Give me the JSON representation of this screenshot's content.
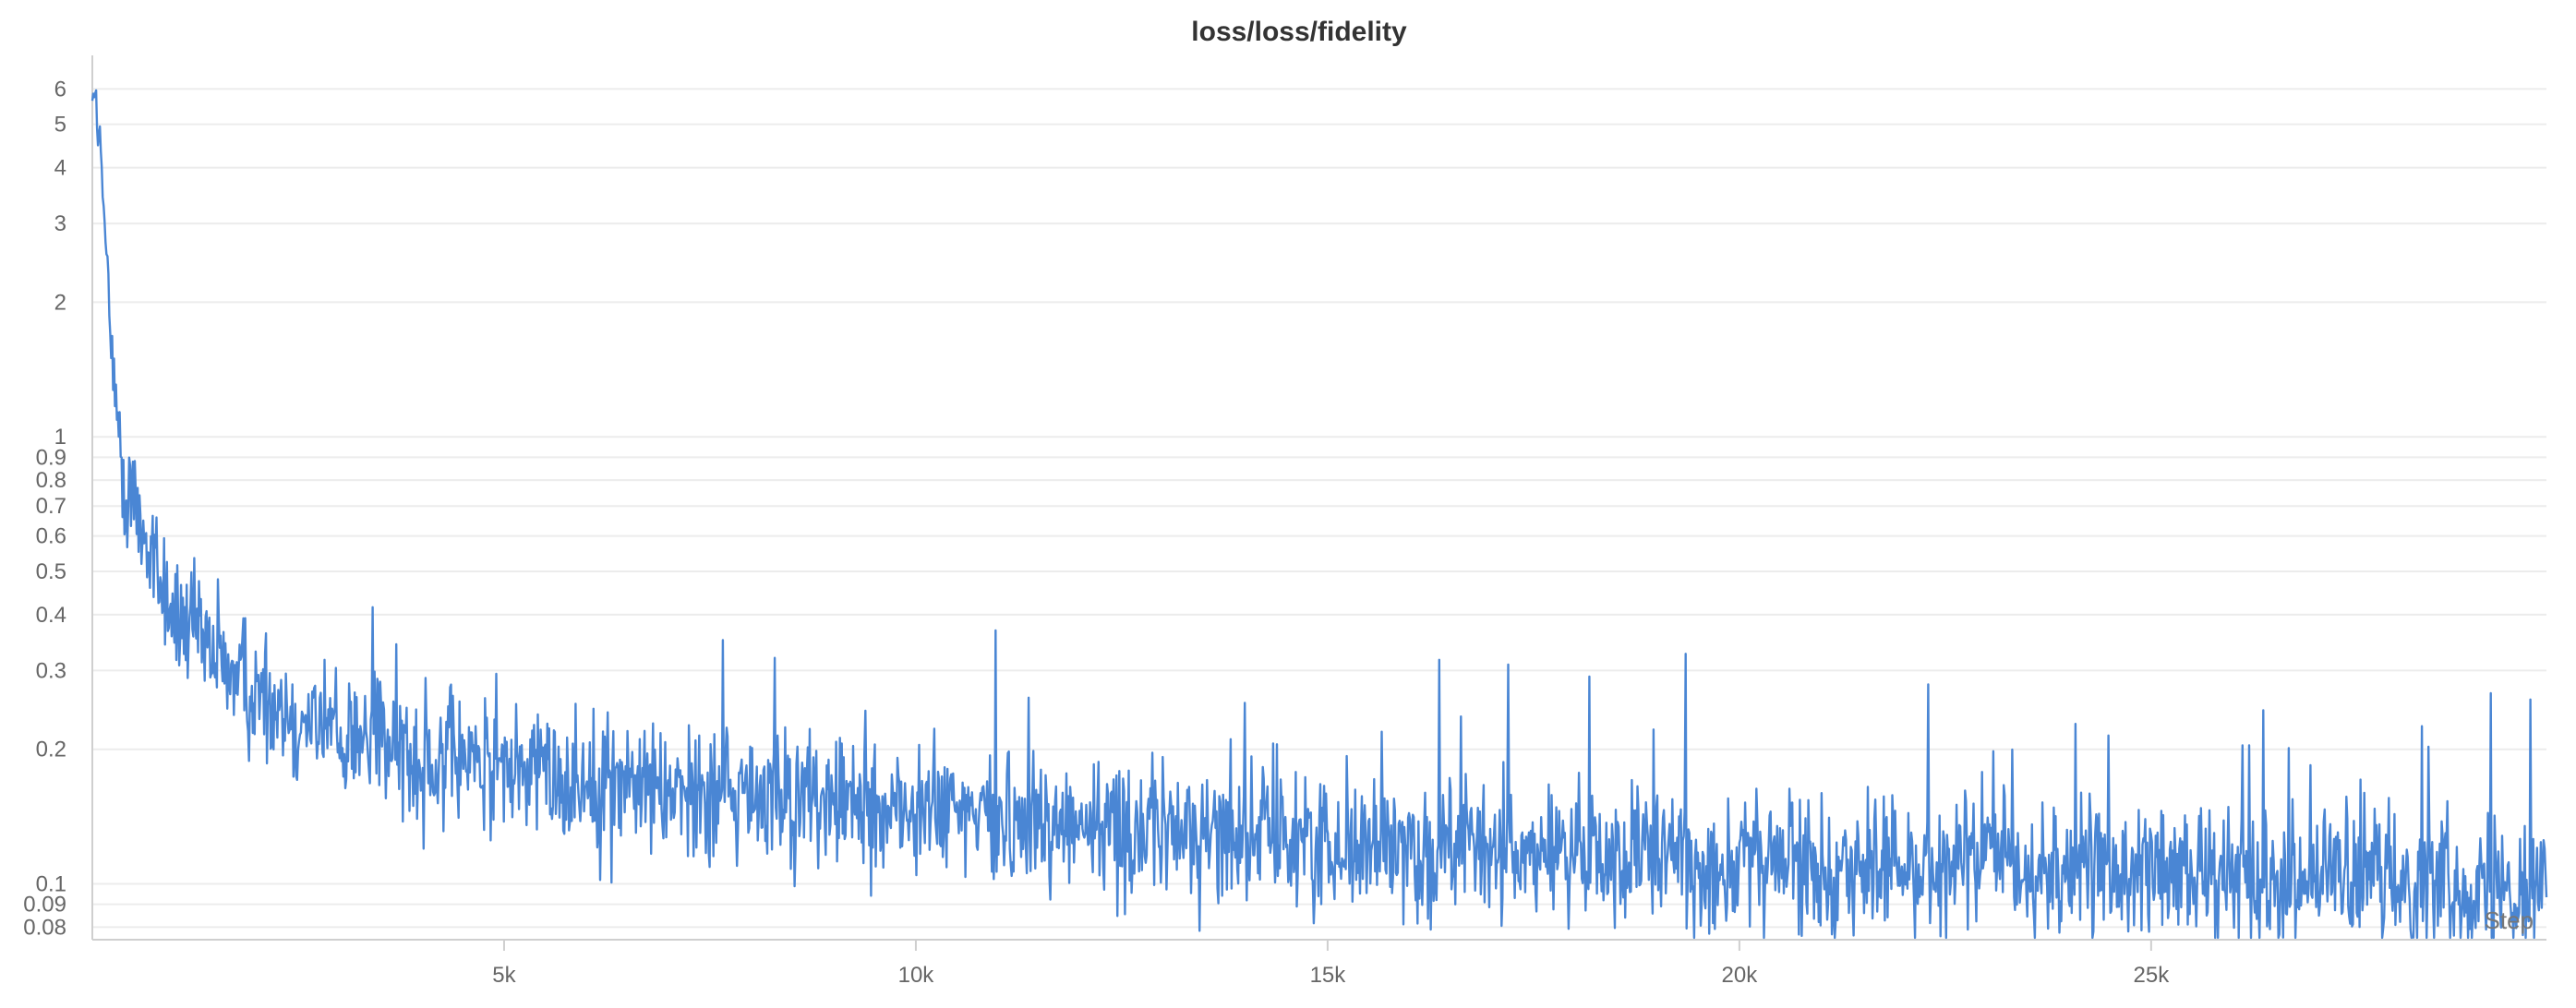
{
  "chart_data": {
    "type": "line",
    "title": "loss/loss/fidelity",
    "xlabel": "Step",
    "ylabel": "",
    "y_scale": "log",
    "xlim": [
      0,
      29800
    ],
    "ylim": [
      0.075,
      6.8
    ],
    "grid": true,
    "legend": "none",
    "x_ticks": [
      5000,
      10000,
      15000,
      20000,
      25000
    ],
    "x_tick_labels": [
      "5k",
      "10k",
      "15k",
      "20k",
      "25k"
    ],
    "y_ticks": [
      0.08,
      0.09,
      0.1,
      0.2,
      0.3,
      0.4,
      0.5,
      0.6,
      0.7,
      0.8,
      0.9,
      1,
      2,
      3,
      4,
      5,
      6
    ],
    "y_tick_labels": [
      "0.08",
      "0.09",
      "0.1",
      "0.2",
      "0.3",
      "0.4",
      "0.5",
      "0.6",
      "0.7",
      "0.8",
      "0.9",
      "1",
      "2",
      "3",
      "4",
      "5",
      "6"
    ],
    "series_color": "#4a86d4",
    "series": [
      {
        "x": [
          0,
          50,
          100,
          150,
          200,
          250,
          300,
          350,
          400,
          500,
          600,
          700,
          800,
          900,
          1000,
          1200,
          1400,
          1600,
          1800,
          2000,
          2300,
          2600,
          3000,
          3500,
          4000,
          4500,
          5000,
          6000,
          7000,
          8000,
          9000,
          10000,
          11000,
          12000,
          13000,
          14000,
          15000,
          16000,
          17000,
          18000,
          19000,
          20000,
          21000,
          22000,
          23000,
          24000,
          25000,
          26000,
          27000,
          28000,
          29000,
          29800
        ],
        "y": [
          6.2,
          5.5,
          4.3,
          2.9,
          2.0,
          1.4,
          1.05,
          0.9,
          0.82,
          0.72,
          0.64,
          0.56,
          0.49,
          0.44,
          0.4,
          0.36,
          0.33,
          0.31,
          0.29,
          0.27,
          0.25,
          0.235,
          0.22,
          0.205,
          0.195,
          0.188,
          0.18,
          0.172,
          0.165,
          0.158,
          0.152,
          0.146,
          0.141,
          0.136,
          0.132,
          0.128,
          0.124,
          0.121,
          0.119,
          0.116,
          0.114,
          0.112,
          0.11,
          0.109,
          0.108,
          0.107,
          0.106,
          0.105,
          0.104,
          0.103,
          0.1,
          0.1
        ]
      }
    ]
  }
}
